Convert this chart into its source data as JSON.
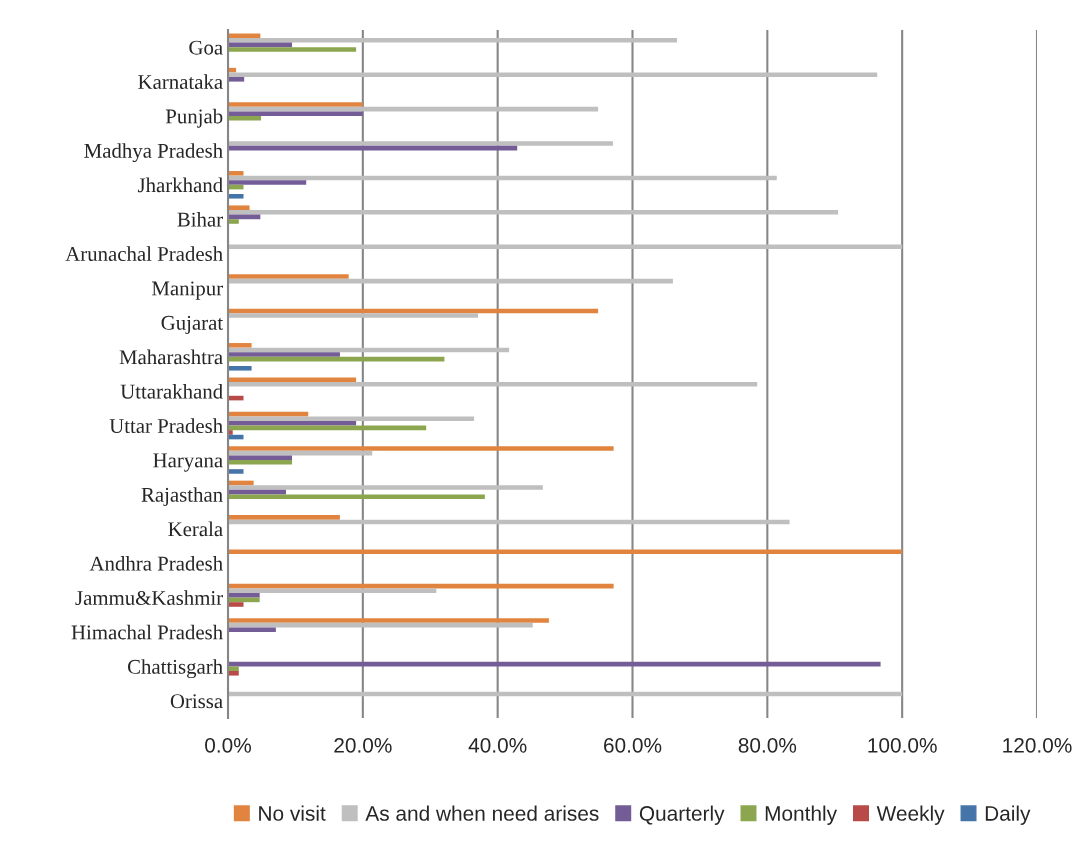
{
  "chart_data": {
    "type": "bar",
    "orientation": "horizontal",
    "categories": [
      "Goa",
      "Karnataka",
      "Punjab",
      "Madhya Pradesh",
      "Jharkhand",
      "Bihar",
      "Arunachal Pradesh",
      "Manipur",
      "Gujarat",
      "Maharashtra",
      "Uttarakhand",
      "Uttar Pradesh",
      "Haryana",
      "Rajasthan",
      "Kerala",
      "Andhra Pradesh",
      "Jammu&Kashmir",
      "Himachal Pradesh",
      "Chattisgarh",
      "Orissa"
    ],
    "series": [
      {
        "name": "No visit",
        "color": "#e0843f",
        "values": [
          4.8,
          1.2,
          20.0,
          0,
          2.3,
          3.2,
          0,
          17.9,
          54.9,
          3.5,
          19.0,
          11.9,
          57.2,
          3.8,
          16.6,
          100,
          57.2,
          47.6,
          0,
          0
        ]
      },
      {
        "name": "As and when need arises",
        "color": "#bfbfbf",
        "values": [
          66.6,
          96.3,
          54.9,
          57.1,
          81.4,
          90.5,
          100,
          66.0,
          37.1,
          41.7,
          78.5,
          36.5,
          21.4,
          46.7,
          83.3,
          0,
          30.9,
          45.2,
          0,
          100
        ]
      },
      {
        "name": "Quarterly",
        "color": "#745d97",
        "values": [
          9.5,
          2.4,
          20.0,
          42.9,
          11.6,
          4.8,
          0,
          0,
          0,
          16.6,
          0,
          19.0,
          9.5,
          8.6,
          0,
          0,
          4.7,
          7.1,
          96.8,
          0
        ]
      },
      {
        "name": "Monthly",
        "color": "#8ba64f",
        "values": [
          19.0,
          0,
          4.9,
          0,
          2.3,
          1.6,
          0,
          0,
          0,
          32.1,
          0,
          29.4,
          9.5,
          38.1,
          0,
          0,
          4.7,
          0,
          1.6,
          0
        ]
      },
      {
        "name": "Weekly",
        "color": "#b84a47",
        "values": [
          0,
          0,
          0,
          0,
          0,
          0,
          0,
          0,
          0,
          0,
          2.3,
          0.7,
          0,
          0,
          0,
          0,
          2.3,
          0,
          1.6,
          0
        ]
      },
      {
        "name": "Daily",
        "color": "#4575a8",
        "values": [
          0,
          0,
          0,
          0,
          2.3,
          0,
          0,
          0,
          0,
          3.5,
          0,
          2.3,
          2.3,
          0,
          0,
          0,
          0,
          0,
          0,
          0
        ]
      }
    ],
    "xlim": [
      0,
      120
    ],
    "xticks": [
      {
        "value": 0,
        "label": "0.0%"
      },
      {
        "value": 20,
        "label": "20.0%"
      },
      {
        "value": 40,
        "label": "40.0%"
      },
      {
        "value": 60,
        "label": "60.0%"
      },
      {
        "value": 80,
        "label": "80.0%"
      },
      {
        "value": 100,
        "label": "100.0%"
      },
      {
        "value": 120,
        "label": "120.0%"
      }
    ],
    "grid": "x",
    "legend": "bottom"
  }
}
